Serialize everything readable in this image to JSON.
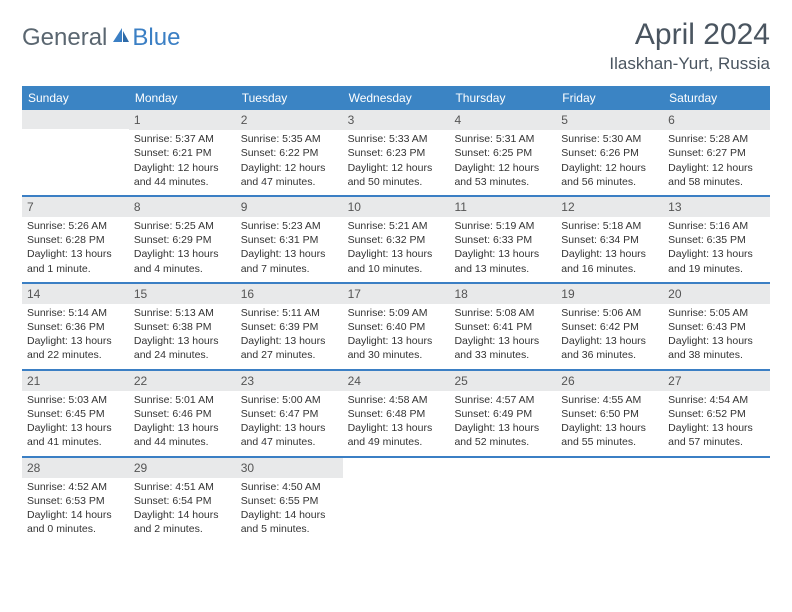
{
  "logo": {
    "general": "General",
    "blue": "Blue"
  },
  "title": "April 2024",
  "location": "Ilaskhan-Yurt, Russia",
  "weekdays": [
    "Sunday",
    "Monday",
    "Tuesday",
    "Wednesday",
    "Thursday",
    "Friday",
    "Saturday"
  ],
  "colors": {
    "header_bar": "#3b84c4",
    "row_divider": "#3b7fc4",
    "daynum_bg": "#e8e9ea",
    "logo_gray": "#5a6670",
    "logo_blue": "#3b7fc4",
    "title_color": "#4a5560"
  },
  "weeks": [
    [
      null,
      {
        "n": "1",
        "sr": "5:37 AM",
        "ss": "6:21 PM",
        "dl": "12 hours and 44 minutes."
      },
      {
        "n": "2",
        "sr": "5:35 AM",
        "ss": "6:22 PM",
        "dl": "12 hours and 47 minutes."
      },
      {
        "n": "3",
        "sr": "5:33 AM",
        "ss": "6:23 PM",
        "dl": "12 hours and 50 minutes."
      },
      {
        "n": "4",
        "sr": "5:31 AM",
        "ss": "6:25 PM",
        "dl": "12 hours and 53 minutes."
      },
      {
        "n": "5",
        "sr": "5:30 AM",
        "ss": "6:26 PM",
        "dl": "12 hours and 56 minutes."
      },
      {
        "n": "6",
        "sr": "5:28 AM",
        "ss": "6:27 PM",
        "dl": "12 hours and 58 minutes."
      }
    ],
    [
      {
        "n": "7",
        "sr": "5:26 AM",
        "ss": "6:28 PM",
        "dl": "13 hours and 1 minute."
      },
      {
        "n": "8",
        "sr": "5:25 AM",
        "ss": "6:29 PM",
        "dl": "13 hours and 4 minutes."
      },
      {
        "n": "9",
        "sr": "5:23 AM",
        "ss": "6:31 PM",
        "dl": "13 hours and 7 minutes."
      },
      {
        "n": "10",
        "sr": "5:21 AM",
        "ss": "6:32 PM",
        "dl": "13 hours and 10 minutes."
      },
      {
        "n": "11",
        "sr": "5:19 AM",
        "ss": "6:33 PM",
        "dl": "13 hours and 13 minutes."
      },
      {
        "n": "12",
        "sr": "5:18 AM",
        "ss": "6:34 PM",
        "dl": "13 hours and 16 minutes."
      },
      {
        "n": "13",
        "sr": "5:16 AM",
        "ss": "6:35 PM",
        "dl": "13 hours and 19 minutes."
      }
    ],
    [
      {
        "n": "14",
        "sr": "5:14 AM",
        "ss": "6:36 PM",
        "dl": "13 hours and 22 minutes."
      },
      {
        "n": "15",
        "sr": "5:13 AM",
        "ss": "6:38 PM",
        "dl": "13 hours and 24 minutes."
      },
      {
        "n": "16",
        "sr": "5:11 AM",
        "ss": "6:39 PM",
        "dl": "13 hours and 27 minutes."
      },
      {
        "n": "17",
        "sr": "5:09 AM",
        "ss": "6:40 PM",
        "dl": "13 hours and 30 minutes."
      },
      {
        "n": "18",
        "sr": "5:08 AM",
        "ss": "6:41 PM",
        "dl": "13 hours and 33 minutes."
      },
      {
        "n": "19",
        "sr": "5:06 AM",
        "ss": "6:42 PM",
        "dl": "13 hours and 36 minutes."
      },
      {
        "n": "20",
        "sr": "5:05 AM",
        "ss": "6:43 PM",
        "dl": "13 hours and 38 minutes."
      }
    ],
    [
      {
        "n": "21",
        "sr": "5:03 AM",
        "ss": "6:45 PM",
        "dl": "13 hours and 41 minutes."
      },
      {
        "n": "22",
        "sr": "5:01 AM",
        "ss": "6:46 PM",
        "dl": "13 hours and 44 minutes."
      },
      {
        "n": "23",
        "sr": "5:00 AM",
        "ss": "6:47 PM",
        "dl": "13 hours and 47 minutes."
      },
      {
        "n": "24",
        "sr": "4:58 AM",
        "ss": "6:48 PM",
        "dl": "13 hours and 49 minutes."
      },
      {
        "n": "25",
        "sr": "4:57 AM",
        "ss": "6:49 PM",
        "dl": "13 hours and 52 minutes."
      },
      {
        "n": "26",
        "sr": "4:55 AM",
        "ss": "6:50 PM",
        "dl": "13 hours and 55 minutes."
      },
      {
        "n": "27",
        "sr": "4:54 AM",
        "ss": "6:52 PM",
        "dl": "13 hours and 57 minutes."
      }
    ],
    [
      {
        "n": "28",
        "sr": "4:52 AM",
        "ss": "6:53 PM",
        "dl": "14 hours and 0 minutes."
      },
      {
        "n": "29",
        "sr": "4:51 AM",
        "ss": "6:54 PM",
        "dl": "14 hours and 2 minutes."
      },
      {
        "n": "30",
        "sr": "4:50 AM",
        "ss": "6:55 PM",
        "dl": "14 hours and 5 minutes."
      },
      null,
      null,
      null,
      null
    ]
  ],
  "labels": {
    "sunrise": "Sunrise:",
    "sunset": "Sunset:",
    "daylight": "Daylight:"
  }
}
